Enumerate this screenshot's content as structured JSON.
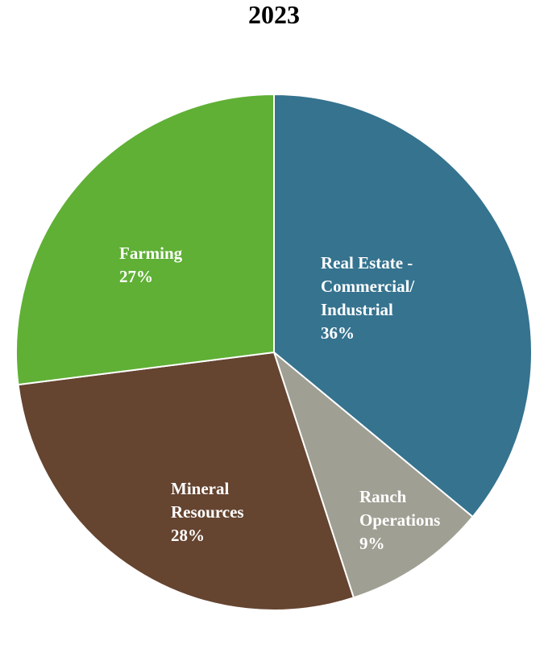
{
  "chart_data": {
    "type": "pie",
    "title": "2023",
    "slices": [
      {
        "label": [
          "Real Estate -",
          "Commercial/",
          "Industrial"
        ],
        "percent_label": "36%",
        "value": 36,
        "color": "#35738f"
      },
      {
        "label": [
          "Ranch",
          "Operations"
        ],
        "percent_label": "9%",
        "value": 9,
        "color": "#a09f93"
      },
      {
        "label": [
          "Mineral",
          "Resources"
        ],
        "percent_label": "28%",
        "value": 28,
        "color": "#654430"
      },
      {
        "label": [
          "Farming"
        ],
        "percent_label": "27%",
        "value": 27,
        "color": "#5fb035"
      }
    ],
    "start_angle_deg": 0,
    "direction": "clockwise",
    "legend": "none"
  }
}
